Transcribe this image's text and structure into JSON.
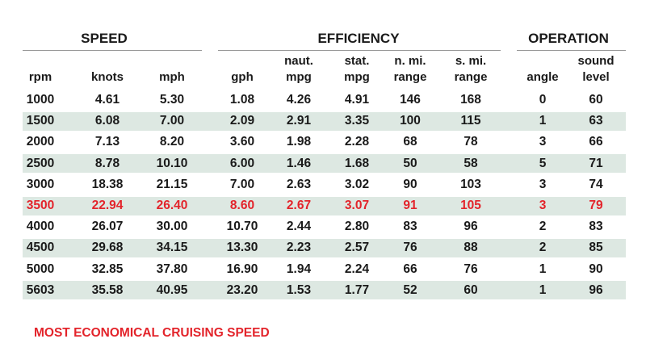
{
  "groups": [
    "SPEED",
    "EFFICIENCY",
    "OPERATION"
  ],
  "columns": [
    "rpm",
    "knots",
    "mph",
    "gph",
    "naut.\nmpg",
    "stat.\nmpg",
    "n. mi.\nrange",
    "s. mi.\nrange",
    "angle",
    "sound\nlevel"
  ],
  "rows": [
    [
      "1000",
      "4.61",
      "5.30",
      "1.08",
      "4.26",
      "4.91",
      "146",
      "168",
      "0",
      "60"
    ],
    [
      "1500",
      "6.08",
      "7.00",
      "2.09",
      "2.91",
      "3.35",
      "100",
      "115",
      "1",
      "63"
    ],
    [
      "2000",
      "7.13",
      "8.20",
      "3.60",
      "1.98",
      "2.28",
      "68",
      "78",
      "3",
      "66"
    ],
    [
      "2500",
      "8.78",
      "10.10",
      "6.00",
      "1.46",
      "1.68",
      "50",
      "58",
      "5",
      "71"
    ],
    [
      "3000",
      "18.38",
      "21.15",
      "7.00",
      "2.63",
      "3.02",
      "90",
      "103",
      "3",
      "74"
    ],
    [
      "3500",
      "22.94",
      "26.40",
      "8.60",
      "2.67",
      "3.07",
      "91",
      "105",
      "3",
      "79"
    ],
    [
      "4000",
      "26.07",
      "30.00",
      "10.70",
      "2.44",
      "2.80",
      "83",
      "96",
      "2",
      "83"
    ],
    [
      "4500",
      "29.68",
      "34.15",
      "13.30",
      "2.23",
      "2.57",
      "76",
      "88",
      "2",
      "85"
    ],
    [
      "5000",
      "32.85",
      "37.80",
      "16.90",
      "1.94",
      "2.24",
      "66",
      "76",
      "1",
      "90"
    ],
    [
      "5603",
      "35.58",
      "40.95",
      "23.20",
      "1.53",
      "1.77",
      "52",
      "60",
      "1",
      "96"
    ]
  ],
  "footnote": "MOST ECONOMICAL CRUISING SPEED",
  "highlight_row": 5,
  "highlight_color": "#e3242b",
  "stripe_color": "#dde8e2"
}
